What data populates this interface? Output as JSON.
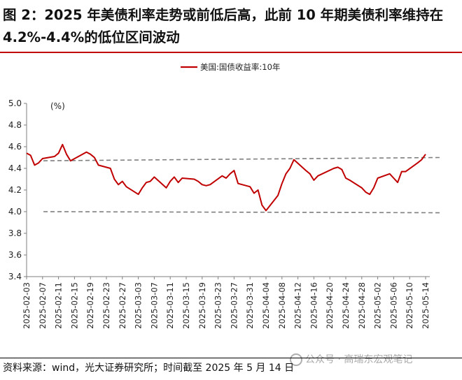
{
  "header": {
    "title": "图 2：2025 年美债利率走势或前低后高，此前 10 年期美债利率维持在 4.2%-4.4%的低位区间波动"
  },
  "footer": {
    "source": "资料来源：wind，光大证券研究所；时间截至 2025 年 5 月 14 日",
    "watermark": "公众号 · 高瑞东宏观笔记"
  },
  "colors": {
    "series": "#c00000",
    "reference": "#7f7f7f",
    "axis": "#7f7f7f"
  },
  "chart_data": {
    "type": "line",
    "unit_label": "(%)",
    "legend": "美国:国债收益率:10年",
    "legend_position": "top-center",
    "ylim": [
      3.4,
      5.0
    ],
    "yticks": [
      "5.0",
      "4.8",
      "4.6",
      "4.4",
      "4.2",
      "4.0",
      "3.8",
      "3.6",
      "3.4"
    ],
    "x_tick_labels": [
      "2025-02-03",
      "2025-02-07",
      "2025-02-11",
      "2025-02-15",
      "2025-02-19",
      "2025-02-23",
      "2025-02-27",
      "2025-03-03",
      "2025-03-07",
      "2025-03-11",
      "2025-03-15",
      "2025-03-19",
      "2025-03-23",
      "2025-03-27",
      "2025-03-31",
      "2025-04-04",
      "2025-04-08",
      "2025-04-12",
      "2025-04-16",
      "2025-04-20",
      "2025-04-24",
      "2025-04-28",
      "2025-05-02",
      "2025-05-06",
      "2025-05-10",
      "2025-05-14"
    ],
    "x_start": "2025-02-03",
    "x_end": "2025-05-14",
    "reference_lines": [
      {
        "y_start": 4.47,
        "y_end": 4.5,
        "style": "dashed"
      },
      {
        "y_start": 4.0,
        "y_end": 3.99,
        "style": "dashed"
      }
    ],
    "series": [
      {
        "name": "美国:国债收益率:10年",
        "points": [
          [
            "2025-02-03",
            4.54
          ],
          [
            "2025-02-04",
            4.52
          ],
          [
            "2025-02-05",
            4.43
          ],
          [
            "2025-02-06",
            4.45
          ],
          [
            "2025-02-07",
            4.49
          ],
          [
            "2025-02-10",
            4.51
          ],
          [
            "2025-02-11",
            4.54
          ],
          [
            "2025-02-12",
            4.62
          ],
          [
            "2025-02-13",
            4.53
          ],
          [
            "2025-02-14",
            4.47
          ],
          [
            "2025-02-18",
            4.55
          ],
          [
            "2025-02-19",
            4.53
          ],
          [
            "2025-02-20",
            4.5
          ],
          [
            "2025-02-21",
            4.43
          ],
          [
            "2025-02-24",
            4.4
          ],
          [
            "2025-02-25",
            4.3
          ],
          [
            "2025-02-26",
            4.25
          ],
          [
            "2025-02-27",
            4.28
          ],
          [
            "2025-02-28",
            4.23
          ],
          [
            "2025-03-03",
            4.16
          ],
          [
            "2025-03-04",
            4.22
          ],
          [
            "2025-03-05",
            4.27
          ],
          [
            "2025-03-06",
            4.28
          ],
          [
            "2025-03-07",
            4.32
          ],
          [
            "2025-03-10",
            4.22
          ],
          [
            "2025-03-11",
            4.28
          ],
          [
            "2025-03-12",
            4.32
          ],
          [
            "2025-03-13",
            4.27
          ],
          [
            "2025-03-14",
            4.31
          ],
          [
            "2025-03-17",
            4.3
          ],
          [
            "2025-03-18",
            4.28
          ],
          [
            "2025-03-19",
            4.25
          ],
          [
            "2025-03-20",
            4.24
          ],
          [
            "2025-03-21",
            4.25
          ],
          [
            "2025-03-24",
            4.33
          ],
          [
            "2025-03-25",
            4.31
          ],
          [
            "2025-03-26",
            4.35
          ],
          [
            "2025-03-27",
            4.38
          ],
          [
            "2025-03-28",
            4.26
          ],
          [
            "2025-03-31",
            4.23
          ],
          [
            "2025-04-01",
            4.17
          ],
          [
            "2025-04-02",
            4.2
          ],
          [
            "2025-04-03",
            4.06
          ],
          [
            "2025-04-04",
            4.01
          ],
          [
            "2025-04-07",
            4.15
          ],
          [
            "2025-04-08",
            4.26
          ],
          [
            "2025-04-09",
            4.35
          ],
          [
            "2025-04-10",
            4.4
          ],
          [
            "2025-04-11",
            4.48
          ],
          [
            "2025-04-14",
            4.38
          ],
          [
            "2025-04-15",
            4.35
          ],
          [
            "2025-04-16",
            4.29
          ],
          [
            "2025-04-17",
            4.33
          ],
          [
            "2025-04-21",
            4.4
          ],
          [
            "2025-04-22",
            4.41
          ],
          [
            "2025-04-23",
            4.39
          ],
          [
            "2025-04-24",
            4.31
          ],
          [
            "2025-04-25",
            4.29
          ],
          [
            "2025-04-28",
            4.22
          ],
          [
            "2025-04-29",
            4.18
          ],
          [
            "2025-04-30",
            4.16
          ],
          [
            "2025-05-01",
            4.22
          ],
          [
            "2025-05-02",
            4.31
          ],
          [
            "2025-05-05",
            4.35
          ],
          [
            "2025-05-06",
            4.31
          ],
          [
            "2025-05-07",
            4.27
          ],
          [
            "2025-05-08",
            4.37
          ],
          [
            "2025-05-09",
            4.37
          ],
          [
            "2025-05-12",
            4.45
          ],
          [
            "2025-05-13",
            4.48
          ],
          [
            "2025-05-14",
            4.53
          ]
        ]
      }
    ]
  }
}
